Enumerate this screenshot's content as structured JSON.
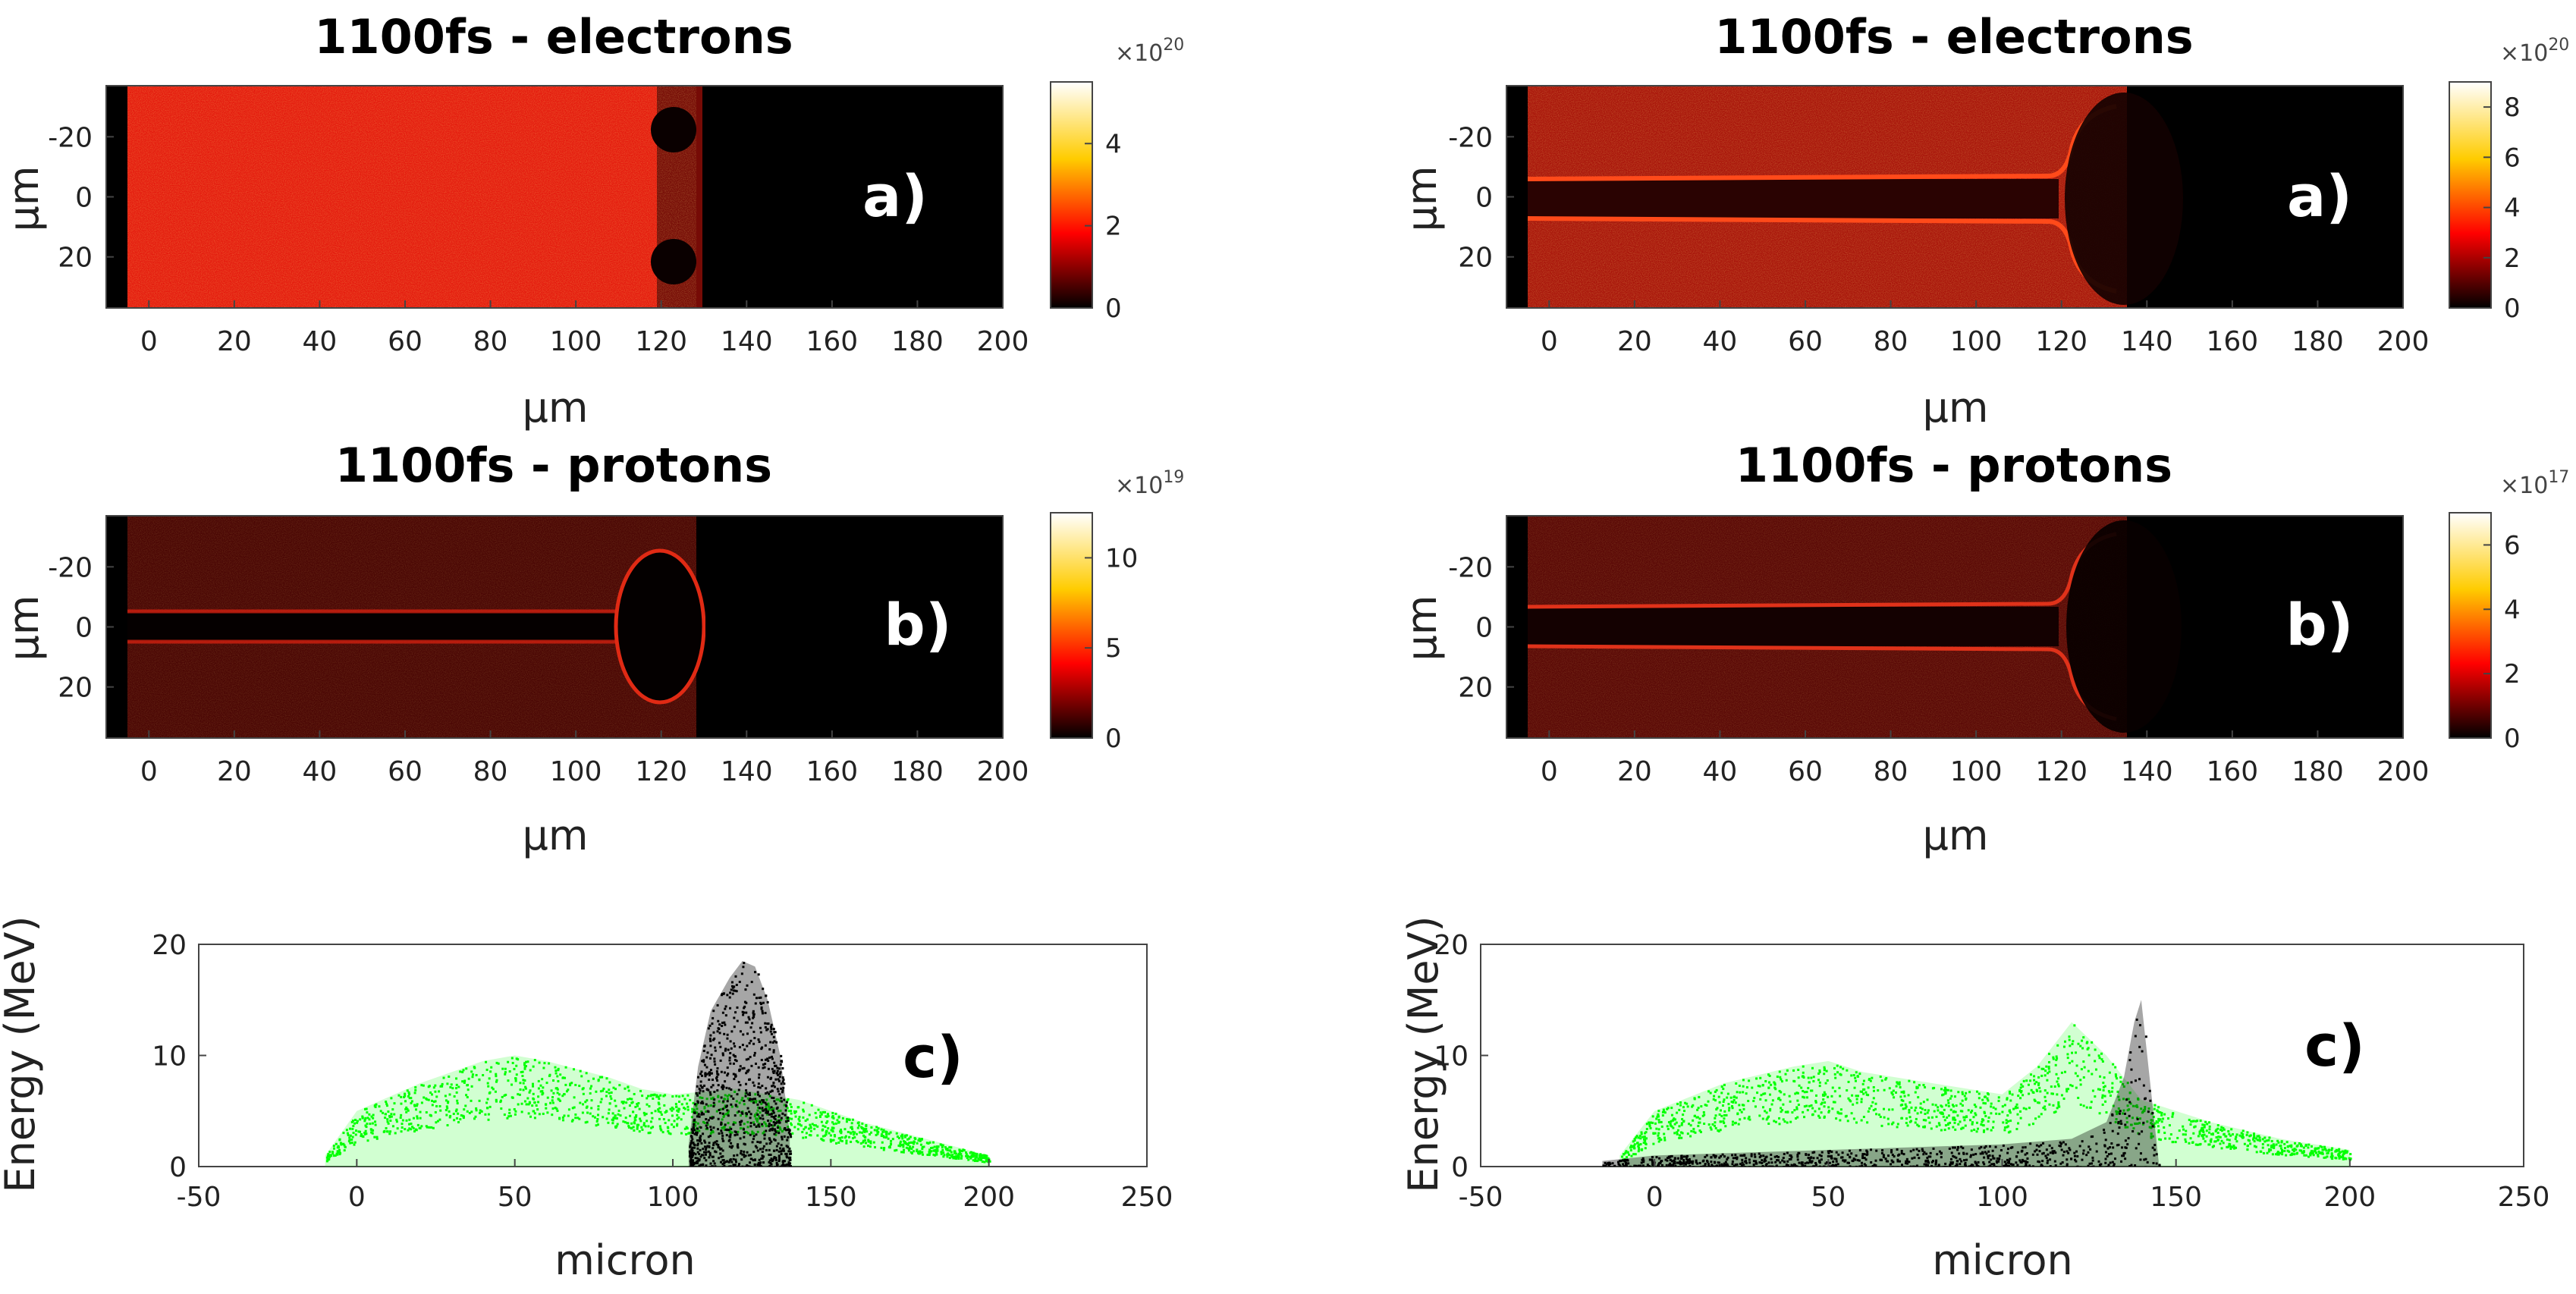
{
  "figure": {
    "left": {
      "electrons": {
        "title": "1100fs - electrons",
        "panel": "a)",
        "xlabel": "μm",
        "ylabel": "μm",
        "xticks": [
          "0",
          "20",
          "40",
          "60",
          "80",
          "100",
          "120",
          "140",
          "160",
          "180",
          "200"
        ],
        "yticks": [
          "-20",
          "0",
          "20"
        ],
        "colorbar": {
          "exponent_base": "×10",
          "exponent": "20",
          "ticks": [
            "0",
            "2",
            "4"
          ]
        }
      },
      "protons": {
        "title": "1100fs - protons",
        "panel": "b)",
        "xlabel": "μm",
        "ylabel": "μm",
        "xticks": [
          "0",
          "20",
          "40",
          "60",
          "80",
          "100",
          "120",
          "140",
          "160",
          "180",
          "200"
        ],
        "yticks": [
          "-20",
          "0",
          "20"
        ],
        "colorbar": {
          "exponent_base": "×10",
          "exponent": "19",
          "ticks": [
            "0",
            "5",
            "10"
          ]
        }
      },
      "energy": {
        "panel": "c)",
        "xlabel": "micron",
        "ylabel": "Energy (MeV)",
        "xticks": [
          "-50",
          "0",
          "50",
          "100",
          "150",
          "200",
          "250"
        ],
        "yticks": [
          "0",
          "10",
          "20"
        ]
      }
    },
    "right": {
      "electrons": {
        "title": "1100fs - electrons",
        "panel": "a)",
        "xlabel": "μm",
        "ylabel": "μm",
        "xticks": [
          "0",
          "20",
          "40",
          "60",
          "80",
          "100",
          "120",
          "140",
          "160",
          "180",
          "200"
        ],
        "yticks": [
          "-20",
          "0",
          "20"
        ],
        "colorbar": {
          "exponent_base": "×10",
          "exponent": "20",
          "ticks": [
            "0",
            "2",
            "4",
            "6",
            "8"
          ]
        }
      },
      "protons": {
        "title": "1100fs - protons",
        "panel": "b)",
        "xlabel": "μm",
        "ylabel": "μm",
        "xticks": [
          "0",
          "20",
          "40",
          "60",
          "80",
          "100",
          "120",
          "140",
          "160",
          "180",
          "200"
        ],
        "yticks": [
          "-20",
          "0",
          "20"
        ],
        "colorbar": {
          "exponent_base": "×10",
          "exponent": "17",
          "ticks": [
            "0",
            "2",
            "4",
            "6"
          ]
        }
      },
      "energy": {
        "panel": "c)",
        "xlabel": "micron",
        "ylabel": "Energy (MeV)",
        "xticks": [
          "-50",
          "0",
          "50",
          "100",
          "150",
          "200",
          "250"
        ],
        "yticks": [
          "0",
          "10",
          "20"
        ]
      }
    }
  },
  "chart_data": [
    {
      "type": "heatmap",
      "title": "1100fs - electrons",
      "side": "left",
      "panel": "a)",
      "xlabel": "μm",
      "ylabel": "μm",
      "xlim": [
        -10,
        200
      ],
      "ylim": [
        -37,
        37
      ],
      "colorbar_range": [
        0,
        5.5e+20
      ],
      "features": {
        "fill_x_range": [
          -10,
          128
        ],
        "typical_density": 2.3e+20,
        "cavities_at_y": [
          -20,
          20
        ],
        "cavity_x": 121,
        "cavity_radius": 7
      }
    },
    {
      "type": "heatmap",
      "title": "1100fs - electrons",
      "side": "right",
      "panel": "a)",
      "xlabel": "μm",
      "ylabel": "μm",
      "xlim": [
        -10,
        200
      ],
      "ylim": [
        -37,
        37
      ],
      "colorbar_range": [
        0,
        9e+20
      ],
      "features": {
        "fill_x_range": [
          -10,
          135
        ],
        "typical_density": 2.5e+20,
        "channel_walls_y": [
          -5,
          5
        ],
        "channel_x_end": 113,
        "wall_density": 5e+20
      }
    },
    {
      "type": "heatmap",
      "title": "1100fs - protons",
      "side": "left",
      "panel": "b)",
      "xlabel": "μm",
      "ylabel": "μm",
      "xlim": [
        -10,
        200
      ],
      "ylim": [
        -37,
        37
      ],
      "colorbar_range": [
        0,
        1.25e+20
      ],
      "features": {
        "fill_x_range": [
          -10,
          133
        ],
        "typical_density": 3e+19,
        "channel_walls_y": [
          -3,
          3
        ],
        "channel_x_end": 108,
        "bubble_x_range": [
          112,
          132
        ]
      }
    },
    {
      "type": "heatmap",
      "title": "1100fs - protons",
      "side": "right",
      "panel": "b)",
      "xlabel": "μm",
      "ylabel": "μm",
      "xlim": [
        -10,
        200
      ],
      "ylim": [
        -37,
        37
      ],
      "colorbar_range": [
        0,
        7e+17
      ],
      "features": {
        "fill_x_range": [
          -10,
          136
        ],
        "typical_density": 1.8e+17,
        "channel_walls_y": [
          -5,
          5
        ],
        "channel_x_end": 115
      }
    },
    {
      "type": "scatter",
      "side": "left",
      "panel": "c)",
      "xlabel": "micron",
      "ylabel": "Energy (MeV)",
      "xlim": [
        -50,
        250
      ],
      "ylim": [
        0,
        20
      ],
      "series": [
        {
          "name": "green",
          "color": "#00ff00",
          "x": [
            -10,
            0,
            20,
            40,
            50,
            60,
            80,
            90,
            100,
            120,
            140,
            160,
            180,
            200
          ],
          "upper": [
            1,
            5,
            7.5,
            9.5,
            10,
            9.5,
            8,
            7,
            6.5,
            7,
            6,
            4,
            2.5,
            1
          ]
        },
        {
          "name": "black",
          "color": "#000000",
          "x": [
            105,
            108,
            112,
            118,
            122,
            126,
            130,
            134,
            137
          ],
          "upper": [
            2,
            9,
            14,
            17,
            18.5,
            18,
            15,
            10,
            3
          ]
        }
      ]
    },
    {
      "type": "scatter",
      "side": "right",
      "panel": "c)",
      "xlabel": "micron",
      "ylabel": "Energy (MeV)",
      "xlim": [
        -50,
        250
      ],
      "ylim": [
        0,
        20
      ],
      "series": [
        {
          "name": "green",
          "color": "#00ff00",
          "x": [
            -10,
            0,
            20,
            40,
            50,
            60,
            80,
            100,
            110,
            120,
            130,
            140,
            160,
            180,
            200
          ],
          "upper": [
            1,
            5,
            7.5,
            9,
            9.5,
            8.5,
            7.5,
            6.5,
            9,
            13,
            10,
            6,
            4,
            2.5,
            1.5
          ]
        },
        {
          "name": "black",
          "color": "#000000",
          "x": [
            -15,
            0,
            50,
            100,
            120,
            130,
            135,
            138,
            140,
            145
          ],
          "upper": [
            0.5,
            1,
            1.5,
            2,
            2.5,
            4,
            8,
            13,
            15,
            0.5
          ]
        }
      ]
    }
  ]
}
